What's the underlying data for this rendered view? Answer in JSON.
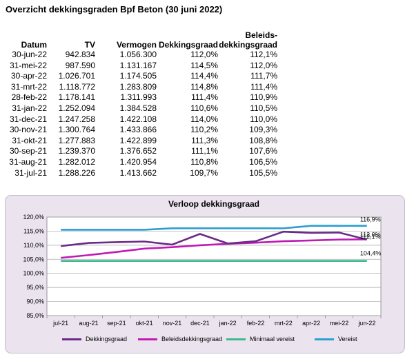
{
  "title": "Overzicht dekkingsgraden Bpf Beton (30 juni 2022)",
  "table": {
    "headers": {
      "datum": "Datum",
      "tv": "TV",
      "vermogen": "Vermogen",
      "dekkingsgraad": "Dekkingsgraad",
      "beleids_line1": "Beleids-",
      "beleids_line2": "dekkingsgraad"
    },
    "rows": [
      [
        "30-jun-22",
        "942.834",
        "1.056.300",
        "112,0%",
        "112,1%"
      ],
      [
        "31-mei-22",
        "987.590",
        "1.131.167",
        "114,5%",
        "112,0%"
      ],
      [
        "30-apr-22",
        "1.026.701",
        "1.174.505",
        "114,4%",
        "111,7%"
      ],
      [
        "31-mrt-22",
        "1.118.772",
        "1.283.809",
        "114,8%",
        "111,4%"
      ],
      [
        "28-feb-22",
        "1.178.141",
        "1.311.993",
        "111,4%",
        "110,9%"
      ],
      [
        "31-jan-22",
        "1.252.094",
        "1.384.528",
        "110,6%",
        "110,5%"
      ],
      [
        "31-dec-21",
        "1.247.258",
        "1.422.108",
        "114,0%",
        "110,0%"
      ],
      [
        "30-nov-21",
        "1.300.764",
        "1.433.866",
        "110,2%",
        "109,3%"
      ],
      [
        "31-okt-21",
        "1.277.883",
        "1.422.899",
        "111,3%",
        "108,8%"
      ],
      [
        "30-sep-21",
        "1.239.370",
        "1.376.652",
        "111,1%",
        "107,6%"
      ],
      [
        "31-aug-21",
        "1.282.012",
        "1.420.954",
        "110,8%",
        "106,5%"
      ],
      [
        "31-jul-21",
        "1.288.226",
        "1.413.662",
        "109,7%",
        "105,5%"
      ]
    ]
  },
  "chart_data": {
    "type": "line",
    "title": "Verloop dekkingsgraad",
    "categories": [
      "jul-21",
      "aug-21",
      "sep-21",
      "okt-21",
      "nov-21",
      "dec-21",
      "jan-22",
      "feb-22",
      "mrt-22",
      "apr-22",
      "mei-22",
      "jun-22"
    ],
    "ylim": [
      85,
      120
    ],
    "yticks": [
      "85,0%",
      "90,0%",
      "95,0%",
      "100,0%",
      "105,0%",
      "110,0%",
      "115,0%",
      "120,0%"
    ],
    "grid": true,
    "legend_position": "bottom",
    "series": [
      {
        "name": "Dekkingsgraad",
        "color": "#6b2a86",
        "values": [
          109.7,
          110.8,
          111.1,
          111.3,
          110.2,
          114.0,
          110.6,
          111.4,
          114.8,
          114.4,
          114.5,
          112.0
        ]
      },
      {
        "name": "Beleidsdekkingsgraad",
        "color": "#c01ab5",
        "values": [
          105.5,
          106.5,
          107.6,
          108.8,
          109.3,
          110.0,
          110.5,
          110.9,
          111.4,
          111.7,
          112.0,
          112.1
        ]
      },
      {
        "name": "Minimaal vereist",
        "color": "#3cb98e",
        "values": [
          104.4,
          104.4,
          104.4,
          104.4,
          104.4,
          104.4,
          104.4,
          104.4,
          104.4,
          104.4,
          104.4,
          104.4
        ]
      },
      {
        "name": "Vereist",
        "color": "#2b9fd1",
        "values": [
          115.5,
          115.5,
          115.5,
          115.5,
          116.0,
          116.0,
          116.0,
          116.0,
          116.0,
          116.9,
          116.9,
          116.9
        ]
      }
    ],
    "end_labels": {
      "vereist": "116,9%",
      "dekkingsgraad": "112,0%",
      "beleids": "112,1%",
      "minimaal": "104,4%"
    }
  }
}
